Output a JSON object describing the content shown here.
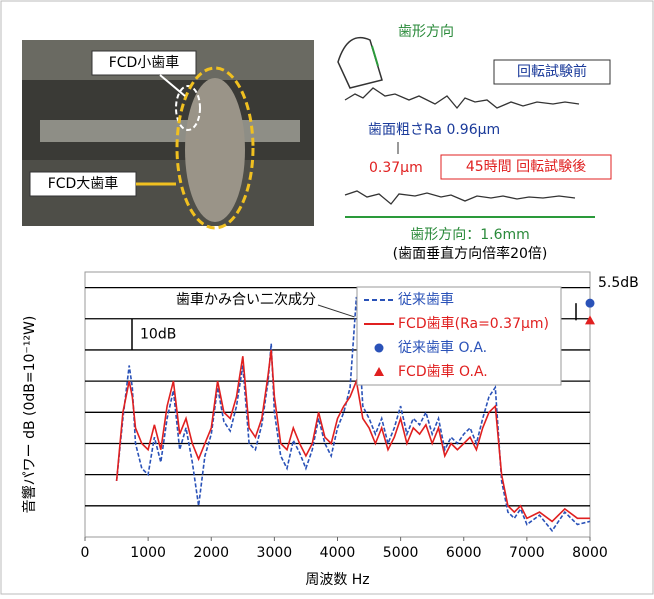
{
  "figure": {
    "photo_labels": [
      "FCD小歯車",
      "FCD大歯車"
    ],
    "profile": {
      "direction_label": "歯形方向",
      "before_label": "回転試験前",
      "ra_before": "歯面粗さRa 0.96μm",
      "ra_after": "0.37μm",
      "after_label": "45時間 回転試験後",
      "length_label": "歯形方向：1.6mm",
      "scale_note": "(歯面垂直方向倍率20倍)"
    }
  },
  "chart_data": {
    "type": "line",
    "x_label": "周波数 Hz",
    "y_label": "音響パワー dB (0dB=10⁻¹²W)",
    "annotations": [
      "歯車かみ合い二次成分",
      "10dB",
      "5.5dB"
    ],
    "xlim": [
      0,
      8000
    ],
    "xticks": [
      0,
      1000,
      2000,
      3000,
      4000,
      5000,
      6000,
      7000,
      8000
    ],
    "ylim": [
      0,
      85
    ],
    "ygrid": [
      10,
      20,
      30,
      40,
      50,
      60,
      70,
      80
    ],
    "x": [
      500,
      600,
      700,
      750,
      800,
      900,
      1000,
      1100,
      1200,
      1300,
      1400,
      1500,
      1600,
      1700,
      1800,
      1900,
      2000,
      2100,
      2200,
      2300,
      2400,
      2500,
      2600,
      2700,
      2800,
      2900,
      2950,
      3000,
      3100,
      3200,
      3300,
      3400,
      3500,
      3600,
      3700,
      3800,
      3900,
      4000,
      4100,
      4200,
      4300,
      4400,
      4500,
      4600,
      4700,
      4800,
      4900,
      5000,
      5100,
      5200,
      5300,
      5400,
      5500,
      5600,
      5700,
      5800,
      5900,
      6000,
      6100,
      6200,
      6300,
      6400,
      6500,
      6600,
      6700,
      6800,
      6900,
      7000,
      7200,
      7400,
      7600,
      7800,
      8000
    ],
    "series": [
      {
        "name": "従来歯車",
        "color": "#2a52b8",
        "linestyle": "dashed",
        "values": [
          18,
          38,
          55,
          48,
          30,
          22,
          20,
          32,
          24,
          38,
          47,
          28,
          35,
          24,
          10,
          26,
          33,
          48,
          37,
          34,
          42,
          55,
          30,
          28,
          36,
          50,
          62,
          40,
          26,
          22,
          31,
          27,
          22,
          28,
          38,
          30,
          26,
          35,
          40,
          48,
          77,
          42,
          38,
          33,
          38,
          30,
          35,
          42,
          33,
          38,
          36,
          40,
          33,
          38,
          28,
          32,
          30,
          33,
          35,
          30,
          38,
          45,
          48,
          18,
          8,
          6,
          9,
          4,
          7,
          2,
          8,
          4,
          5
        ]
      },
      {
        "name": "FCD歯車(Ra=0.37μm)",
        "color": "#e02020",
        "linestyle": "solid",
        "values": [
          18,
          40,
          50,
          45,
          35,
          30,
          28,
          36,
          28,
          42,
          50,
          33,
          38,
          30,
          25,
          30,
          35,
          50,
          40,
          38,
          45,
          58,
          35,
          32,
          38,
          52,
          60,
          45,
          30,
          28,
          35,
          30,
          26,
          30,
          40,
          32,
          30,
          38,
          42,
          45,
          50,
          38,
          35,
          30,
          35,
          28,
          32,
          38,
          30,
          35,
          33,
          36,
          30,
          35,
          26,
          30,
          28,
          30,
          32,
          28,
          35,
          40,
          42,
          20,
          10,
          8,
          10,
          6,
          8,
          5,
          9,
          6,
          6
        ]
      }
    ],
    "oa_points": [
      {
        "name": "従来歯車 O.A.",
        "color": "#2a52b8",
        "marker": "circle",
        "x": 8000,
        "value": 75
      },
      {
        "name": "FCD歯車 O.A.",
        "color": "#e02020",
        "marker": "triangle",
        "x": 8000,
        "value": 69.5
      }
    ]
  }
}
